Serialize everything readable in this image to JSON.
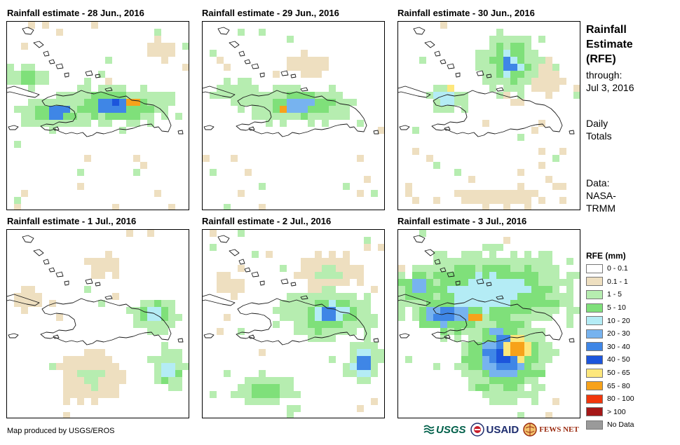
{
  "panels": [
    {
      "title": "Rainfall estimate - 28 Jun., 2016"
    },
    {
      "title": "Rainfall estimate - 29 Jun., 2016"
    },
    {
      "title": "Rainfall estimate - 30 Jun., 2016"
    },
    {
      "title": "Rainfall estimate - 1 Jul., 2016"
    },
    {
      "title": "Rainfall estimate - 2 Jul., 2016"
    },
    {
      "title": "Rainfall estimate - 3 Jul., 2016"
    }
  ],
  "side": {
    "title_lines": [
      "Rainfall",
      "Estimate",
      "(RFE)"
    ],
    "through_label": "through:",
    "through_date": "Jul 3, 2016",
    "daily_lines": [
      "Daily",
      "Totals"
    ],
    "data_lines": [
      "Data:",
      "NASA-",
      "TRMM"
    ]
  },
  "legend": {
    "title": "RFE (mm)",
    "classes": [
      {
        "label": "0 - 0.1",
        "color": "#ffffff"
      },
      {
        "label": "0.1 - 1",
        "color": "#eedfc0"
      },
      {
        "label": "1 - 5",
        "color": "#b6edb0"
      },
      {
        "label": "5 - 10",
        "color": "#7fe07a"
      },
      {
        "label": "10 - 20",
        "color": "#b4ecf5"
      },
      {
        "label": "20 - 30",
        "color": "#77b3ef"
      },
      {
        "label": "30 - 40",
        "color": "#3f86e6"
      },
      {
        "label": "40 - 50",
        "color": "#1c55dc"
      },
      {
        "label": "50 - 65",
        "color": "#fde77c"
      },
      {
        "label": "65 - 80",
        "color": "#f7a21a"
      },
      {
        "label": "80 - 100",
        "color": "#f1360c"
      },
      {
        "label": "> 100",
        "color": "#a51717"
      },
      {
        "label": "No Data",
        "color": "#9a9a9a"
      }
    ]
  },
  "footer": {
    "credit": "Map produced by USGS/EROS",
    "logos": {
      "usgs": "USGS",
      "usaid": "USAID",
      "fews": "FEWS NET"
    }
  }
}
